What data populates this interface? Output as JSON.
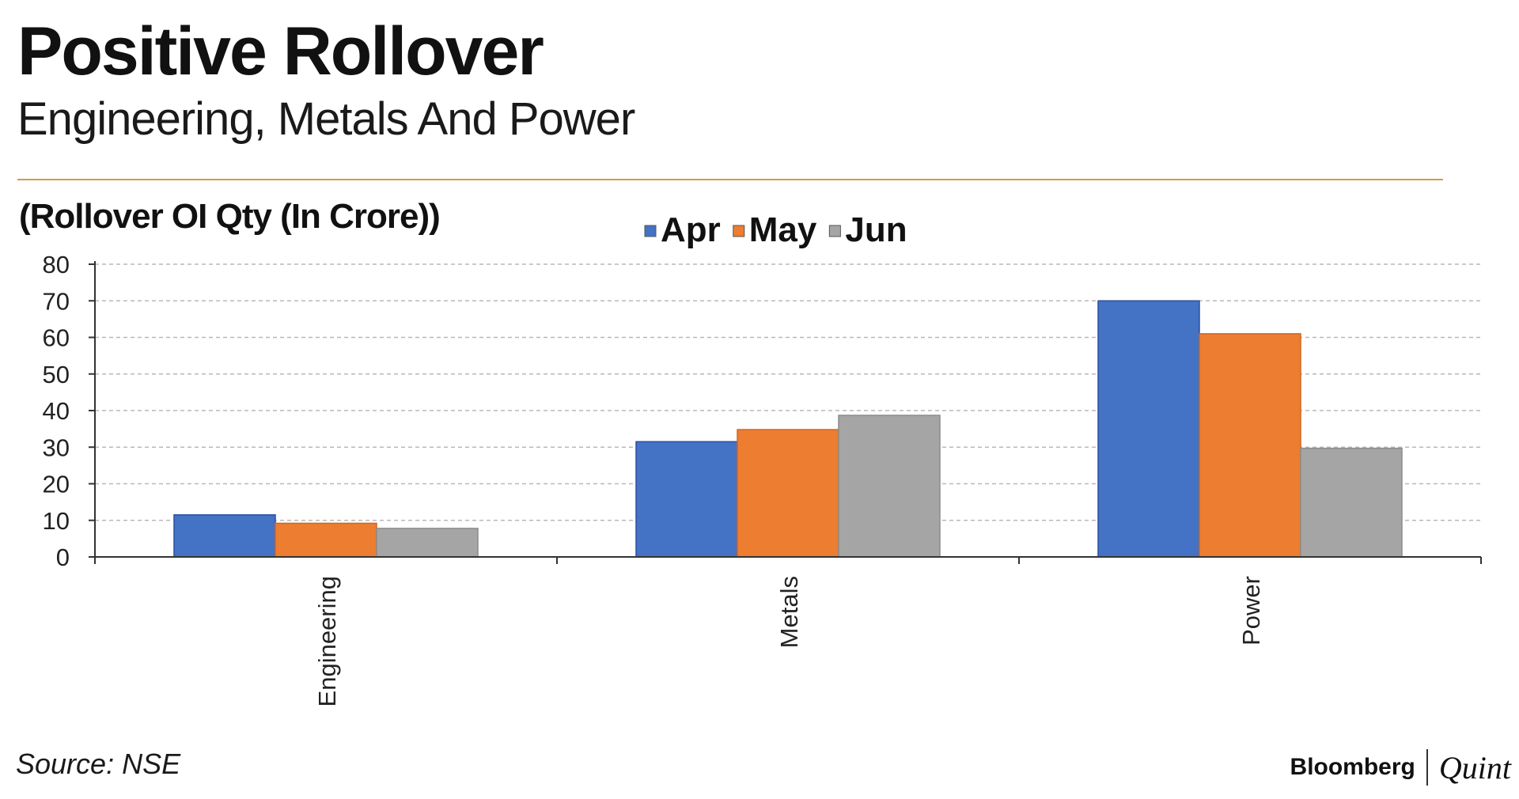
{
  "header": {
    "title": "Positive Rollover",
    "subtitle": "Engineering, Metals And Power"
  },
  "chart_data": {
    "type": "bar",
    "title": "Positive Rollover",
    "subtitle": "Engineering, Metals And Power",
    "unit_label": "(Rollover OI Qty (In Crore))",
    "categories": [
      "Engineering",
      "Metals",
      "Power"
    ],
    "series": [
      {
        "name": "Apr",
        "color": "#4472c4",
        "values": [
          11.5,
          31.5,
          70
        ]
      },
      {
        "name": "May",
        "color": "#ed7d31",
        "values": [
          9.2,
          34.8,
          61
        ]
      },
      {
        "name": "Jun",
        "color": "#a5a5a5",
        "values": [
          7.8,
          38.7,
          29.7
        ]
      }
    ],
    "ylim": [
      0,
      80
    ],
    "yticks": [
      "0",
      "10",
      "20",
      "30",
      "40",
      "50",
      "60",
      "70",
      "80"
    ],
    "grid": true,
    "legend_position": "top-center"
  },
  "footer": {
    "source": "Source: NSE",
    "brand_left": "Bloomberg",
    "brand_right": "Quint"
  }
}
